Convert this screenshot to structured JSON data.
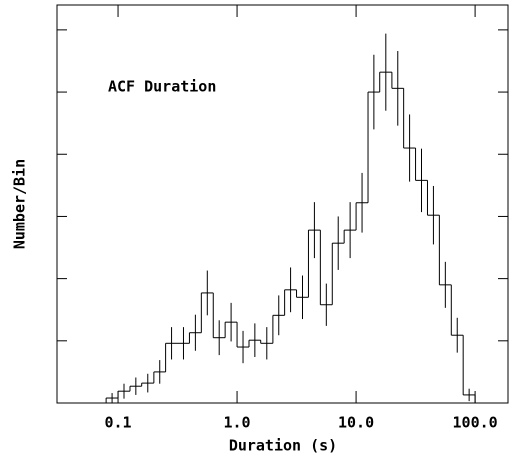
{
  "chart_data": {
    "type": "histogram",
    "annotation": "ACF Duration",
    "xlabel": "Duration (s)",
    "ylabel": "Number/Bin",
    "xscale": "log",
    "color": "#000000",
    "bins": [
      0.0794,
      0.1,
      0.126,
      0.158,
      0.2,
      0.251,
      0.316,
      0.398,
      0.501,
      0.631,
      0.794,
      1,
      1.26,
      1.58,
      2,
      2.51,
      3.16,
      3.98,
      5.01,
      6.31,
      7.94,
      10,
      12.6,
      15.8,
      20,
      25.1,
      31.6,
      39.8,
      50.1,
      63.1,
      79.4,
      100
    ],
    "counts": [
      0.8,
      1.9,
      2.7,
      3.2,
      5.0,
      9.6,
      9.6,
      11.3,
      17.7,
      10.5,
      13.0,
      9.0,
      10.1,
      9.6,
      14.1,
      18.2,
      17.0,
      27.8,
      15.8,
      25.7,
      27.8,
      32.2,
      50.0,
      53.2,
      50.6,
      41.0,
      35.8,
      30.2,
      19.0,
      10.9,
      1.3
    ],
    "errors": [
      0.8,
      1.2,
      1.4,
      1.5,
      1.9,
      2.6,
      2.6,
      2.9,
      3.6,
      2.8,
      3.1,
      2.6,
      2.7,
      2.6,
      3.2,
      3.6,
      3.5,
      4.5,
      3.4,
      4.3,
      4.5,
      4.8,
      6.0,
      6.2,
      6.0,
      5.4,
      5.1,
      4.7,
      3.7,
      2.8,
      1.0
    ],
    "xlim": [
      0.0307,
      189
    ],
    "xticks": [
      0.1,
      {
        "value": 1,
        "label": "1.0"
      },
      {
        "value": 10,
        "label": "10.0"
      },
      {
        "value": 100,
        "label": "100.0"
      }
    ],
    "ylim": [
      0,
      64
    ],
    "yticks": [
      0,
      10,
      20,
      30,
      40,
      50,
      60
    ]
  }
}
